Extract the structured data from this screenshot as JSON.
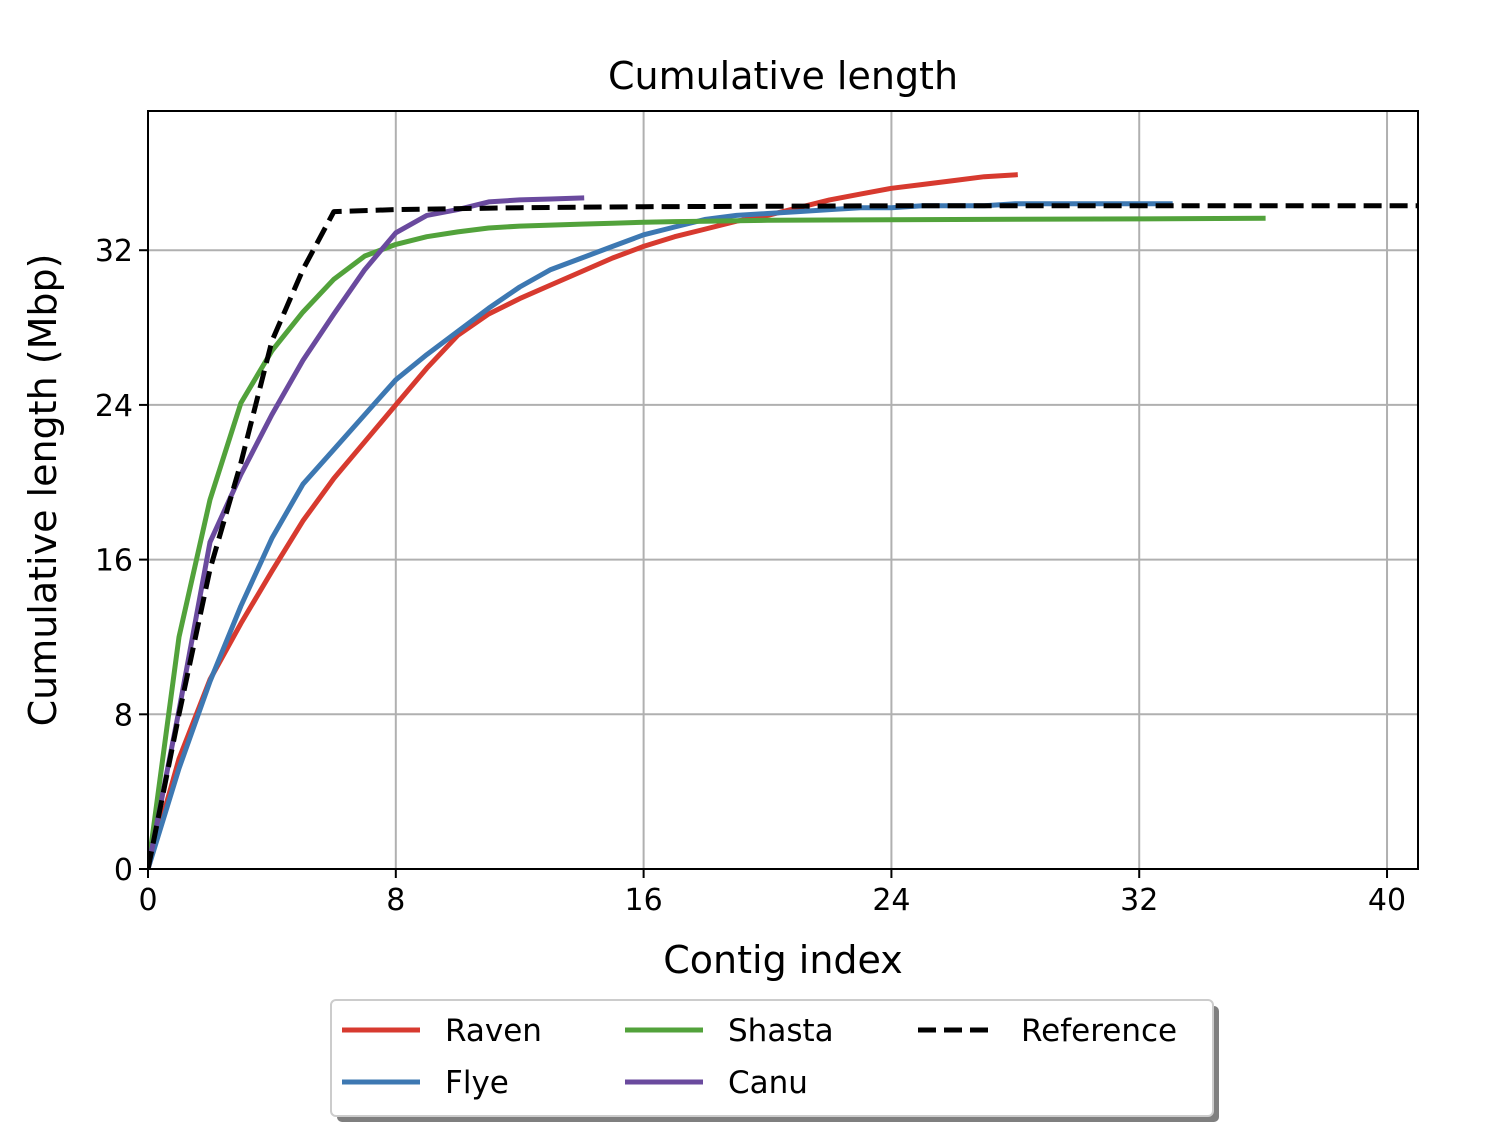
{
  "chart_data": {
    "type": "line",
    "title": "Cumulative length",
    "xlabel": "Contig index",
    "ylabel": "Cumulative length (Mbp)",
    "xlim": [
      0,
      41
    ],
    "ylim": [
      0,
      39.2
    ],
    "xticks": [
      0,
      8,
      16,
      24,
      32,
      40
    ],
    "yticks": [
      0,
      8,
      16,
      24,
      32
    ],
    "grid": true,
    "legend": {
      "placement": "below",
      "columns": 3
    },
    "series": [
      {
        "name": "Raven",
        "color": "#d73a2f",
        "dashed": false,
        "x": [
          0,
          1,
          2,
          3,
          4,
          5,
          6,
          7,
          8,
          9,
          10,
          11,
          12,
          13,
          14,
          15,
          16,
          17,
          18,
          19,
          20,
          21,
          22,
          23,
          24,
          25,
          26,
          27,
          28
        ],
        "y": [
          0,
          5.7,
          9.8,
          12.7,
          15.4,
          18.0,
          20.2,
          22.1,
          24.0,
          25.9,
          27.6,
          28.7,
          29.5,
          30.2,
          30.9,
          31.6,
          32.2,
          32.7,
          33.1,
          33.5,
          33.8,
          34.2,
          34.6,
          34.9,
          35.2,
          35.4,
          35.6,
          35.8,
          35.9
        ]
      },
      {
        "name": "Flye",
        "color": "#3d78b2",
        "dashed": false,
        "x": [
          0,
          1,
          2,
          3,
          4,
          5,
          6,
          7,
          8,
          9,
          10,
          11,
          12,
          13,
          14,
          15,
          16,
          17,
          18,
          19,
          20,
          21,
          22,
          23,
          24,
          25,
          26,
          27,
          28,
          29,
          30,
          31,
          32,
          33
        ],
        "y": [
          0,
          5.2,
          9.7,
          13.6,
          17.1,
          19.9,
          21.7,
          23.5,
          25.3,
          26.6,
          27.8,
          29.0,
          30.1,
          31.0,
          31.6,
          32.2,
          32.8,
          33.2,
          33.6,
          33.8,
          33.9,
          34.0,
          34.1,
          34.2,
          34.2,
          34.3,
          34.3,
          34.3,
          34.4,
          34.4,
          34.4,
          34.4,
          34.4,
          34.4
        ]
      },
      {
        "name": "Shasta",
        "color": "#52a23b",
        "dashed": false,
        "x": [
          0,
          1,
          2,
          3,
          4,
          5,
          6,
          7,
          8,
          9,
          10,
          11,
          12,
          13,
          14,
          15,
          16,
          17,
          18,
          19,
          20,
          24,
          28,
          32,
          36
        ],
        "y": [
          0,
          12.0,
          19.1,
          24.1,
          26.8,
          28.8,
          30.5,
          31.7,
          32.3,
          32.7,
          32.95,
          33.15,
          33.25,
          33.3,
          33.35,
          33.4,
          33.45,
          33.48,
          33.5,
          33.52,
          33.55,
          33.58,
          33.6,
          33.62,
          33.65
        ]
      },
      {
        "name": "Canu",
        "color": "#6a4a9e",
        "dashed": false,
        "x": [
          0,
          1,
          2,
          3,
          4,
          5,
          6,
          7,
          8,
          9,
          10,
          11,
          12,
          13,
          14
        ],
        "y": [
          0,
          8.2,
          16.9,
          20.4,
          23.5,
          26.3,
          28.7,
          31.0,
          32.9,
          33.8,
          34.1,
          34.5,
          34.6,
          34.65,
          34.7
        ]
      },
      {
        "name": "Reference",
        "color": "#000000",
        "dashed": true,
        "x": [
          0,
          1,
          2,
          3,
          4,
          5,
          6,
          8,
          12,
          16,
          24,
          32,
          41
        ],
        "y": [
          0,
          8.0,
          15.5,
          21.0,
          27.3,
          31.0,
          34.0,
          34.1,
          34.2,
          34.25,
          34.3,
          34.3,
          34.3
        ]
      }
    ]
  }
}
